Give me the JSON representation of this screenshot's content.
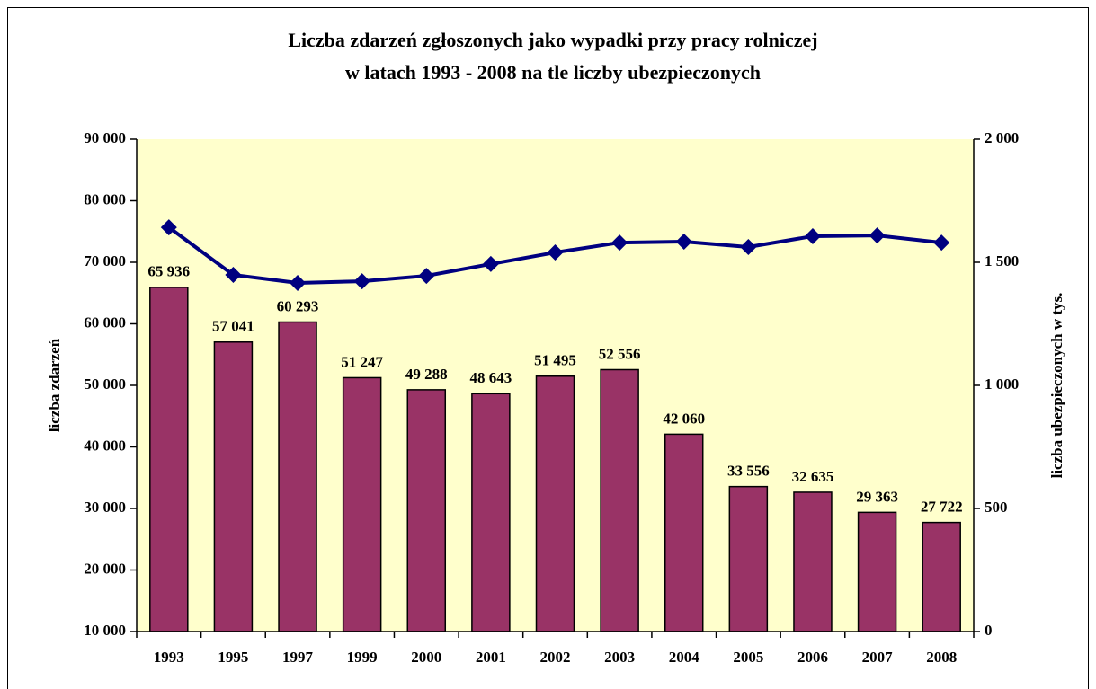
{
  "chart_data": {
    "type": "bar",
    "title": [
      "Liczba zdarzeń zgłoszonych jako wypadki przy pracy rolniczej",
      "w latach 1993 - 2008 na tle liczby ubezpieczonych"
    ],
    "y_label": "liczba zdarzeń",
    "y2_label": "liczba ubezpieczonych w tys.",
    "categories": [
      "1993",
      "1995",
      "1997",
      "1999",
      "2000",
      "2001",
      "2002",
      "2003",
      "2004",
      "2005",
      "2006",
      "2007",
      "2008"
    ],
    "series": [
      {
        "type": "bar",
        "color": "#993366",
        "values": [
          65936,
          57041,
          60293,
          51247,
          49288,
          48643,
          51495,
          52556,
          42060,
          33556,
          32635,
          29363,
          27722
        ],
        "value_labels": [
          "65 936",
          "57 041",
          "60 293",
          "51 247",
          "49 288",
          "48 643",
          "51 495",
          "52 556",
          "42 060",
          "33 556",
          "32 635",
          "29 363",
          "27 722"
        ]
      },
      {
        "type": "line",
        "color": "#000080",
        "axis": "y2",
        "values": [
          1642,
          1449,
          1416,
          1423,
          1445,
          1493,
          1540,
          1580,
          1584,
          1562,
          1606,
          1609,
          1580
        ]
      }
    ],
    "ylim": [
      10000,
      90000
    ],
    "yticks": [
      {
        "value": 10000,
        "label": "10 000"
      },
      {
        "value": 20000,
        "label": "20 000"
      },
      {
        "value": 30000,
        "label": "30 000"
      },
      {
        "value": 40000,
        "label": "40 000"
      },
      {
        "value": 50000,
        "label": "50 000"
      },
      {
        "value": 60000,
        "label": "60 000"
      },
      {
        "value": 70000,
        "label": "70 000"
      },
      {
        "value": 80000,
        "label": "80 000"
      },
      {
        "value": 90000,
        "label": "90 000"
      }
    ],
    "y2lim": [
      0,
      2000
    ],
    "y2ticks": [
      0,
      500,
      {
        "value": 1000,
        "label": "1 000"
      },
      {
        "value": 1500,
        "label": "1 500"
      },
      {
        "value": 2000,
        "label": "2 000"
      }
    ],
    "plot_background": "#ffffcc",
    "grid": false
  }
}
